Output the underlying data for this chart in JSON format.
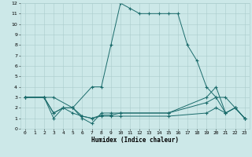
{
  "xlabel": "Humidex (Indice chaleur)",
  "xlim": [
    -0.5,
    23.5
  ],
  "ylim": [
    0,
    12
  ],
  "xticks": [
    0,
    1,
    2,
    3,
    4,
    5,
    6,
    7,
    8,
    9,
    10,
    11,
    12,
    13,
    14,
    15,
    16,
    17,
    18,
    19,
    20,
    21,
    22,
    23
  ],
  "yticks": [
    0,
    1,
    2,
    3,
    4,
    5,
    6,
    7,
    8,
    9,
    10,
    11,
    12
  ],
  "background_color": "#cce8e8",
  "grid_color": "#aacccc",
  "line_color": "#1a6b6b",
  "lines": [
    {
      "x": [
        0,
        2,
        3,
        5,
        7,
        8,
        9,
        10,
        11,
        12,
        13,
        14,
        15,
        16,
        17,
        18,
        19,
        20,
        21,
        22,
        23
      ],
      "y": [
        3,
        3,
        3,
        2,
        4,
        4,
        8,
        12,
        11.5,
        11,
        11,
        11,
        11,
        11,
        8,
        6.5,
        4,
        3,
        1.5,
        2,
        1
      ],
      "marker_x": [
        2,
        5,
        7,
        9,
        10,
        11,
        12,
        13,
        14,
        15,
        16,
        17,
        18,
        19,
        20,
        21,
        22,
        23
      ],
      "marker_y": [
        3,
        2,
        4,
        8,
        12,
        11.5,
        11,
        11,
        11,
        11,
        11,
        8,
        6.5,
        4,
        3,
        1.5,
        2,
        1
      ]
    },
    {
      "x": [
        0,
        2,
        3,
        4,
        5,
        6,
        7,
        8,
        9,
        10,
        15,
        19,
        20,
        21,
        22,
        23
      ],
      "y": [
        3,
        3,
        1,
        2,
        2,
        1,
        0.5,
        1.5,
        1.5,
        1.5,
        1.5,
        3,
        4,
        1.5,
        2,
        1
      ]
    },
    {
      "x": [
        0,
        2,
        3,
        4,
        5,
        6,
        7,
        8,
        9,
        10,
        15,
        19,
        20,
        21,
        22,
        23
      ],
      "y": [
        3,
        3,
        1.5,
        2,
        2,
        1.2,
        1,
        1.3,
        1.3,
        1.5,
        1.5,
        2.5,
        3,
        3,
        2,
        1
      ]
    },
    {
      "x": [
        0,
        2,
        3,
        4,
        5,
        6,
        7,
        8,
        9,
        10,
        15,
        19,
        20,
        21,
        22,
        23
      ],
      "y": [
        3,
        3,
        1.5,
        2,
        1.5,
        1.2,
        1,
        1.2,
        1.2,
        1.2,
        1.2,
        1.5,
        2,
        1.5,
        2,
        1
      ]
    }
  ]
}
